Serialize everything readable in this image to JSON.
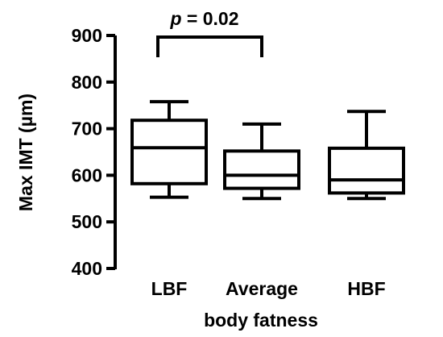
{
  "chart_data": {
    "type": "box",
    "xlabel": "body fatness",
    "ylabel": "Max IMT (µm)",
    "ylim": [
      400,
      900
    ],
    "yticks": [
      400,
      500,
      600,
      700,
      800,
      900
    ],
    "ytick_labels": [
      "400",
      "500",
      "600",
      "700",
      "800",
      "900"
    ],
    "grid": false,
    "categories": [
      "LBF",
      "Average",
      "HBF"
    ],
    "boxes": [
      {
        "category": "LBF",
        "whisker_low": 553,
        "q1": 582,
        "median": 659,
        "q3": 718,
        "whisker_high": 758
      },
      {
        "category": "Average",
        "whisker_low": 550,
        "q1": 572,
        "median": 600,
        "q3": 652,
        "whisker_high": 710
      },
      {
        "category": "HBF",
        "whisker_low": 550,
        "q1": 562,
        "median": 590,
        "q3": 658,
        "whisker_high": 737
      }
    ],
    "annotation": {
      "text_italic": "p",
      "text_rest": " = 0.02",
      "between": [
        "LBF",
        "Average"
      ]
    },
    "colors": {
      "stroke": "#000000",
      "box_fill": "#ffffff"
    }
  }
}
